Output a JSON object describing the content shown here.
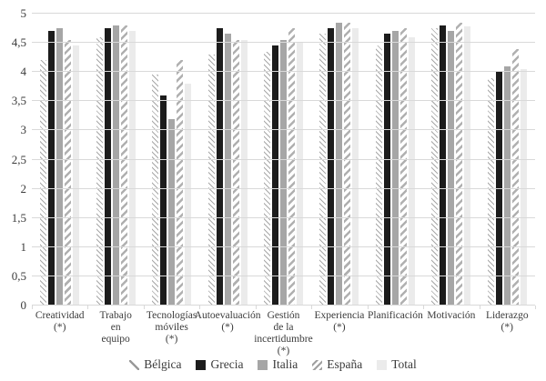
{
  "chart_data": {
    "type": "bar",
    "title": "",
    "xlabel": "",
    "ylabel": "",
    "ylim": [
      0,
      5
    ],
    "ytick_step": 0.5,
    "ytick_labels": [
      "0",
      "0,5",
      "1",
      "1,5",
      "2",
      "2,5",
      "3",
      "3,5",
      "4",
      "4,5",
      "5"
    ],
    "grid": true,
    "legend_position": "bottom",
    "categories": [
      "Creatividad (*)",
      "Trabajo en equipo",
      "Tecnologías móviles (*)",
      "Autoevaluación (*)",
      "Gestión de la incertidumbre (*)",
      "Experiencia (*)",
      "Planificación",
      "Motivación",
      "Liderazgo (*)"
    ],
    "category_display_lines": [
      "Creatividad\n(*)",
      "Trabajo\nen\nequipo",
      "Tecnologías\nmóviles\n(*)",
      "Autoevaluación\n(*)",
      "Gestión\nde la\nincertidumbre\n(*)",
      "Experiencia\n(*)",
      "Planificación",
      "Motivación",
      "Liderazgo\n(*)"
    ],
    "series": [
      {
        "name": "Bélgica",
        "key": "belgica",
        "pattern": "thin-diagonal-hatch",
        "values": [
          4.2,
          4.6,
          3.95,
          4.3,
          4.35,
          4.65,
          4.45,
          4.75,
          3.9
        ]
      },
      {
        "name": "Grecia",
        "key": "grecia",
        "pattern": "solid",
        "values": [
          4.7,
          4.75,
          3.6,
          4.75,
          4.45,
          4.75,
          4.65,
          4.8,
          4.0
        ]
      },
      {
        "name": "Italia",
        "key": "italia",
        "pattern": "solid",
        "values": [
          4.75,
          4.8,
          3.2,
          4.65,
          4.55,
          4.85,
          4.7,
          4.7,
          4.1
        ]
      },
      {
        "name": "España",
        "key": "espana",
        "pattern": "wide-diagonal-stripe",
        "values": [
          4.55,
          4.8,
          4.2,
          4.55,
          4.75,
          4.85,
          4.75,
          4.85,
          4.4
        ]
      },
      {
        "name": "Total",
        "key": "total",
        "pattern": "solid-light",
        "values": [
          4.45,
          4.7,
          3.8,
          4.55,
          4.5,
          4.75,
          4.6,
          4.78,
          4.05
        ]
      }
    ],
    "colors": {
      "grecia_fill": "#1c1c1c",
      "italia_fill": "#a6a6a6",
      "total_fill": "#ebebeb",
      "hatch_line": "#a8a8a8",
      "gridline": "#d9d9d9",
      "text": "#3b3b3b",
      "background": "#ffffff"
    }
  }
}
